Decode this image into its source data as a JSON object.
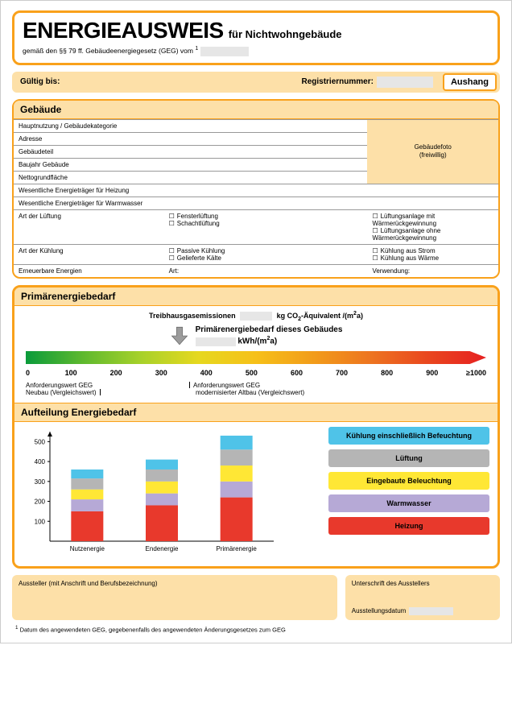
{
  "header": {
    "main_title": "ENERGIEAUSWEIS",
    "sub_title": "für Nichtwohngebäude",
    "law_line_prefix": "gemäß den §§ 79 ff. Gebäudeenergiegesetz (GEG) vom ",
    "law_sup": "1"
  },
  "valid_bar": {
    "valid_label": "Gültig bis:",
    "reg_label": "Registriernummer:",
    "aushang": "Aushang"
  },
  "building": {
    "title": "Gebäude",
    "photo_line1": "Gebäudefoto",
    "photo_line2": "(freiwillig)",
    "rows": {
      "r0": "Hauptnutzung / Gebäudekategorie",
      "r1": "Adresse",
      "r2": "Gebäudeteil",
      "r3": "Baujahr Gebäude",
      "r4": "Nettogrundfläche",
      "r5": "Wesentliche Energieträger für Heizung",
      "r6": "Wesentliche Energieträger für Warmwasser",
      "r7": "Art der Lüftung",
      "r7_o1": "Fensterlüftung",
      "r7_o2": "Schachtlüftung",
      "r7_o3": "Lüftungsanlage mit Wärmerückgewinnung",
      "r7_o4": "Lüftungsanlage ohne Wärmerückgewinnung",
      "r8": "Art der Kühlung",
      "r8_o1": "Passive Kühlung",
      "r8_o2": "Gelieferte Kälte",
      "r8_o3": "Kühlung aus Strom",
      "r8_o4": "Kühlung aus Wärme",
      "r9": "Erneuerbare Energien",
      "r9_art": "Art:",
      "r9_verw": "Verwendung:"
    }
  },
  "primary": {
    "title": "Primärenergiebedarf",
    "thg_prefix": "Treibhausgasemissionen",
    "thg_unit_a": "kg CO",
    "thg_unit_b": "-Äquivalent /(m",
    "thg_unit_c": "a)",
    "building_line": "Primärenergiebedarf dieses Gebäudes",
    "unit_a": "kWh/(m",
    "unit_b": "a)",
    "scale": {
      "ticks": [
        "0",
        "100",
        "200",
        "300",
        "400",
        "500",
        "600",
        "700",
        "800",
        "900",
        "≥1000"
      ],
      "gradient": [
        "#0a9b3b",
        "#5fb92e",
        "#a7d12a",
        "#e6d81f",
        "#f6c019",
        "#f29c1a",
        "#ed7420",
        "#e9461f",
        "#e62020"
      ],
      "arrow_x_fraction": 0.28
    },
    "anfo": {
      "left_l1": "Anforderungswert GEG",
      "left_l2": "Neubau (Vergleichswert)",
      "mid_l1": "Anforderungswert GEG",
      "mid_l2": "modernisierter Altbau (Vergleichswert)"
    }
  },
  "aufteilung": {
    "title": "Aufteilung Energiebedarf",
    "y_ticks": [
      "500",
      "400",
      "300",
      "200",
      "100"
    ],
    "ymax": 550,
    "categories": [
      "Nutzenergie",
      "Endenergie",
      "Primärenergie"
    ],
    "stacks": [
      {
        "heizung": 150,
        "warmwasser": 60,
        "beleuchtung": 50,
        "lueftung": 55,
        "kuehlung": 45
      },
      {
        "heizung": 180,
        "warmwasser": 60,
        "beleuchtung": 60,
        "lueftung": 60,
        "kuehlung": 50
      },
      {
        "heizung": 220,
        "warmwasser": 80,
        "beleuchtung": 80,
        "lueftung": 80,
        "kuehlung": 70
      }
    ],
    "colors": {
      "kuehlung": "#4fc3e8",
      "lueftung": "#b5b5b5",
      "beleuchtung": "#ffe735",
      "warmwasser": "#b6a9d6",
      "heizung": "#e8392c"
    },
    "legend": [
      {
        "key": "kuehlung",
        "label": "Kühlung einschließlich Befeuchtung"
      },
      {
        "key": "lueftung",
        "label": "Lüftung"
      },
      {
        "key": "beleuchtung",
        "label": "Eingebaute Beleuchtung"
      },
      {
        "key": "warmwasser",
        "label": "Warmwasser"
      },
      {
        "key": "heizung",
        "label": "Heizung"
      }
    ]
  },
  "footer": {
    "left": "Aussteller (mit Anschrift und Berufsbezeichnung)",
    "right_sig": "Unterschrift des Ausstellers",
    "right_date": "Ausstellungsdatum",
    "footnote_sup": "1",
    "footnote": " Datum des angewendeten GEG, gegebenenfalls des angewendeten Änderungsgesetzes zum GEG"
  }
}
